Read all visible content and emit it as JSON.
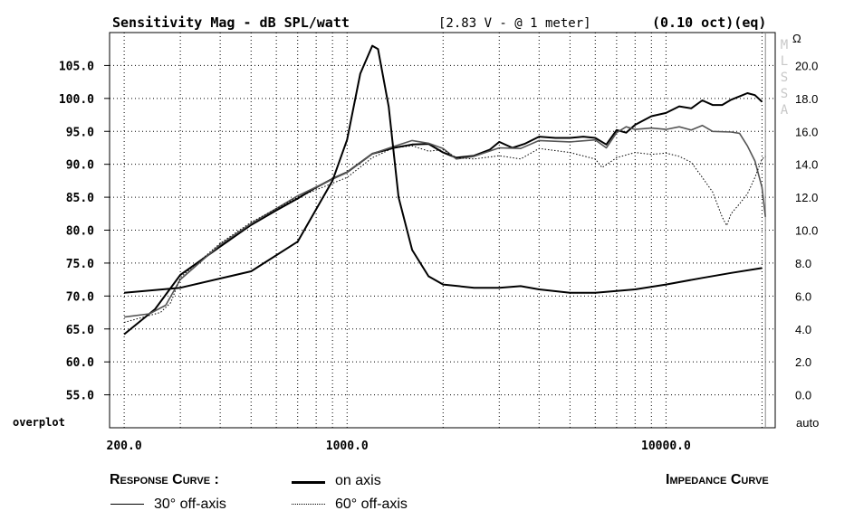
{
  "chart_data": {
    "type": "line",
    "title": "Sensitivity Mag - dB SPL/watt",
    "title_middle": "[2.83 V - @ 1 meter]",
    "title_right": "(0.10 oct)(eq)",
    "x_scale": "log",
    "xlim": [
      180,
      22000
    ],
    "x_ticks": [
      200,
      1000,
      10000
    ],
    "x_tick_labels": [
      "200.0",
      "1000.0",
      "10000.0"
    ],
    "ylim": [
      50,
      110
    ],
    "y_ticks": [
      55,
      60,
      65,
      70,
      75,
      80,
      85,
      90,
      95,
      100,
      105
    ],
    "y_tick_labels": [
      "55.0",
      "60.0",
      "65.0",
      "70.0",
      "75.0",
      "80.0",
      "85.0",
      "90.0",
      "95.0",
      "100.0",
      "105.0"
    ],
    "y_bottom_label": "overplot",
    "y2_unit": "Ω",
    "y2_lim": [
      -2,
      22
    ],
    "y2_ticks": [
      0,
      2,
      4,
      6,
      8,
      10,
      12,
      14,
      16,
      18,
      20
    ],
    "y2_tick_labels": [
      "0.0",
      "2.0",
      "4.0",
      "6.0",
      "8.0",
      "10.0",
      "12.0",
      "14.0",
      "16.0",
      "18.0",
      "20.0"
    ],
    "y2_bottom_label": "auto",
    "watermark": "MLSSA",
    "grid": true,
    "series": [
      {
        "name": "on axis",
        "axis": "left",
        "style": "solid-thick",
        "color": "#000000",
        "points": [
          [
            200,
            64.2
          ],
          [
            250,
            68.0
          ],
          [
            300,
            73.2
          ],
          [
            400,
            77.5
          ],
          [
            500,
            80.8
          ],
          [
            600,
            83.0
          ],
          [
            700,
            84.8
          ],
          [
            800,
            86.5
          ],
          [
            900,
            87.8
          ],
          [
            1000,
            88.8
          ],
          [
            1200,
            91.6
          ],
          [
            1400,
            92.5
          ],
          [
            1600,
            93.0
          ],
          [
            1800,
            93.1
          ],
          [
            2000,
            91.8
          ],
          [
            2200,
            91.0
          ],
          [
            2500,
            91.3
          ],
          [
            2800,
            92.2
          ],
          [
            3000,
            93.4
          ],
          [
            3300,
            92.5
          ],
          [
            3600,
            93.1
          ],
          [
            4000,
            94.2
          ],
          [
            4500,
            94.0
          ],
          [
            5000,
            94.0
          ],
          [
            5500,
            94.2
          ],
          [
            6000,
            94.0
          ],
          [
            6500,
            93.0
          ],
          [
            7000,
            95.2
          ],
          [
            7500,
            94.8
          ],
          [
            8000,
            96.0
          ],
          [
            9000,
            97.3
          ],
          [
            10000,
            97.8
          ],
          [
            11000,
            98.8
          ],
          [
            12000,
            98.5
          ],
          [
            13000,
            99.7
          ],
          [
            14000,
            99.0
          ],
          [
            15000,
            99.0
          ],
          [
            16000,
            99.8
          ],
          [
            17000,
            100.3
          ],
          [
            18000,
            100.8
          ],
          [
            19000,
            100.5
          ],
          [
            20000,
            99.5
          ]
        ]
      },
      {
        "name": "30° off-axis",
        "axis": "left",
        "style": "solid-thin",
        "color": "#555555",
        "points": [
          [
            200,
            66.8
          ],
          [
            240,
            67.3
          ],
          [
            270,
            68.6
          ],
          [
            300,
            72.5
          ],
          [
            400,
            77.8
          ],
          [
            500,
            81.0
          ],
          [
            700,
            85.2
          ],
          [
            1000,
            88.8
          ],
          [
            1200,
            91.6
          ],
          [
            1400,
            92.7
          ],
          [
            1600,
            93.6
          ],
          [
            1800,
            93.2
          ],
          [
            2000,
            92.4
          ],
          [
            2200,
            90.8
          ],
          [
            2500,
            91.2
          ],
          [
            3000,
            92.5
          ],
          [
            3500,
            92.4
          ],
          [
            4000,
            93.6
          ],
          [
            5000,
            93.4
          ],
          [
            6000,
            93.7
          ],
          [
            6500,
            92.5
          ],
          [
            7000,
            94.8
          ],
          [
            7500,
            95.7
          ],
          [
            8000,
            95.3
          ],
          [
            9000,
            95.5
          ],
          [
            10000,
            95.3
          ],
          [
            11000,
            95.7
          ],
          [
            12000,
            95.2
          ],
          [
            13000,
            95.9
          ],
          [
            14000,
            95.0
          ],
          [
            16000,
            94.9
          ],
          [
            17000,
            94.7
          ],
          [
            18000,
            92.8
          ],
          [
            19000,
            90.5
          ],
          [
            20000,
            86.5
          ],
          [
            20500,
            82.0
          ]
        ]
      },
      {
        "name": "60° off-axis",
        "axis": "left",
        "style": "dotted",
        "color": "#000000",
        "points": [
          [
            200,
            66.0
          ],
          [
            230,
            66.8
          ],
          [
            260,
            67.5
          ],
          [
            280,
            69.0
          ],
          [
            300,
            72.8
          ],
          [
            400,
            78.0
          ],
          [
            500,
            81.2
          ],
          [
            700,
            85.0
          ],
          [
            1000,
            88.0
          ],
          [
            1200,
            91.0
          ],
          [
            1400,
            92.5
          ],
          [
            1600,
            92.8
          ],
          [
            1800,
            92.0
          ],
          [
            2000,
            92.2
          ],
          [
            2200,
            91.0
          ],
          [
            2500,
            90.8
          ],
          [
            3000,
            91.3
          ],
          [
            3500,
            90.8
          ],
          [
            4000,
            92.4
          ],
          [
            5000,
            91.8
          ],
          [
            6000,
            90.8
          ],
          [
            6300,
            89.5
          ],
          [
            7000,
            91.0
          ],
          [
            8000,
            91.8
          ],
          [
            9000,
            91.5
          ],
          [
            10000,
            91.7
          ],
          [
            11000,
            91.2
          ],
          [
            12000,
            90.3
          ],
          [
            13000,
            88.0
          ],
          [
            14000,
            85.8
          ],
          [
            15000,
            82.0
          ],
          [
            15500,
            80.7
          ],
          [
            16000,
            82.5
          ],
          [
            17000,
            84.0
          ],
          [
            18000,
            85.5
          ],
          [
            19000,
            88.0
          ],
          [
            20000,
            90.8
          ],
          [
            20500,
            91.2
          ]
        ]
      },
      {
        "name": "Impedance",
        "axis": "right",
        "style": "solid-thick",
        "color": "#000000",
        "points": [
          [
            200,
            6.2
          ],
          [
            300,
            6.5
          ],
          [
            500,
            7.5
          ],
          [
            700,
            9.3
          ],
          [
            900,
            13.0
          ],
          [
            1000,
            15.5
          ],
          [
            1100,
            19.5
          ],
          [
            1200,
            21.2
          ],
          [
            1250,
            21.0
          ],
          [
            1350,
            17.5
          ],
          [
            1450,
            12.0
          ],
          [
            1600,
            8.8
          ],
          [
            1800,
            7.2
          ],
          [
            2000,
            6.7
          ],
          [
            2500,
            6.5
          ],
          [
            3000,
            6.5
          ],
          [
            3500,
            6.6
          ],
          [
            4000,
            6.4
          ],
          [
            5000,
            6.2
          ],
          [
            6000,
            6.2
          ],
          [
            8000,
            6.4
          ],
          [
            10000,
            6.7
          ],
          [
            13000,
            7.1
          ],
          [
            16000,
            7.4
          ],
          [
            20000,
            7.7
          ]
        ]
      }
    ]
  },
  "legend": {
    "response_label": "Response Curve :",
    "on_axis": "on axis",
    "off30": "30° off-axis",
    "off60": "60° off-axis",
    "impedance_label": "Impedance Curve"
  }
}
